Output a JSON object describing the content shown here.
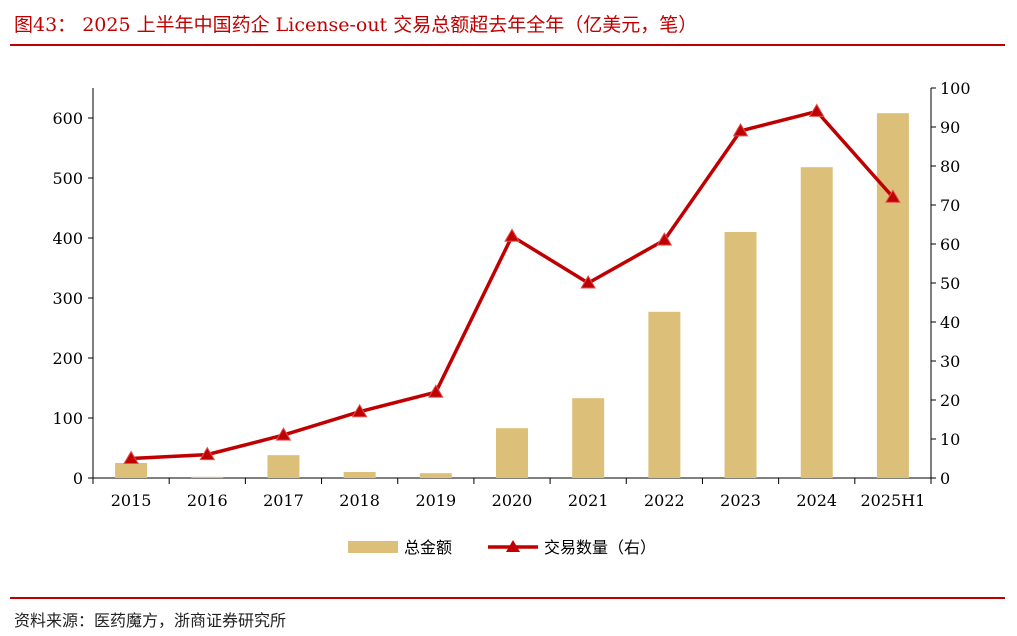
{
  "title": "图43： 2025 上半年中国药企 License-out 交易总额超去年全年（亿美元，笔）",
  "source": "资料来源：医药魔方，浙商证券研究所",
  "chart_data": {
    "type": "bar+line",
    "categories": [
      "2015",
      "2016",
      "2017",
      "2018",
      "2019",
      "2020",
      "2021",
      "2022",
      "2023",
      "2024",
      "2025H1"
    ],
    "series": [
      {
        "name": "总金额",
        "type": "bar",
        "axis": "left",
        "color": "#dcc07a",
        "values": [
          25,
          2,
          38,
          10,
          8,
          83,
          133,
          277,
          410,
          518,
          608
        ]
      },
      {
        "name": "交易数量（右）",
        "type": "line",
        "axis": "right",
        "color": "#c00000",
        "values": [
          5,
          6,
          11,
          17,
          22,
          62,
          50,
          61,
          89,
          94,
          72
        ]
      }
    ],
    "yleft": {
      "lim": [
        0,
        650
      ],
      "ticks": [
        0,
        100,
        200,
        300,
        400,
        500,
        600
      ]
    },
    "yright": {
      "lim": [
        0,
        100
      ],
      "ticks": [
        0,
        10,
        20,
        30,
        40,
        50,
        60,
        70,
        80,
        90,
        100
      ]
    },
    "legend": "bottom",
    "grid": false
  }
}
